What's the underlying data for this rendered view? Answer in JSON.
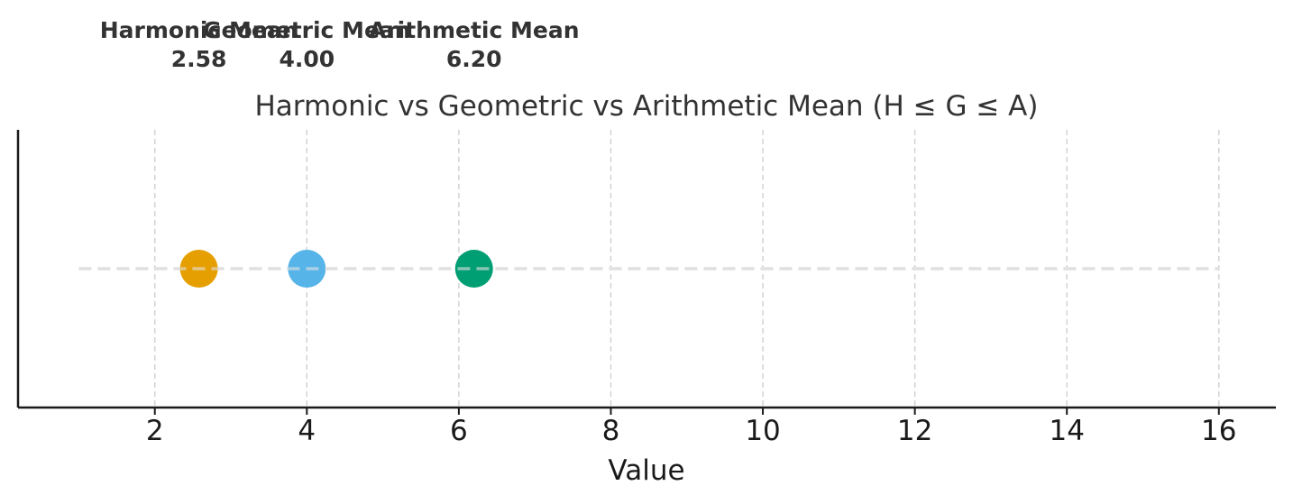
{
  "chart_data": {
    "type": "scatter",
    "title": "Harmonic vs Geometric vs Arithmetic Mean (H ≤ G ≤ A)",
    "xlabel": "Value",
    "ylabel": "",
    "xlim": [
      0.2,
      16.75
    ],
    "x_ticks": [
      2,
      4,
      6,
      8,
      10,
      12,
      14,
      16
    ],
    "x_tick_labels": [
      "2",
      "4",
      "6",
      "8",
      "10",
      "12",
      "14",
      "16"
    ],
    "grid": "vertical dashed",
    "reference_line": {
      "x_start": 1,
      "x_end": 16,
      "style": "dashed",
      "color": "#e0e0e0"
    },
    "points": [
      {
        "name": "Harmonic Mean",
        "x": 2.58,
        "value_label": "2.58",
        "color": "#E69F00"
      },
      {
        "name": "Geometric Mean",
        "x": 4.0,
        "value_label": "4.00",
        "color": "#56B4E9"
      },
      {
        "name": "Arithmetic Mean",
        "x": 6.2,
        "value_label": "6.20",
        "color": "#009E73"
      }
    ]
  }
}
